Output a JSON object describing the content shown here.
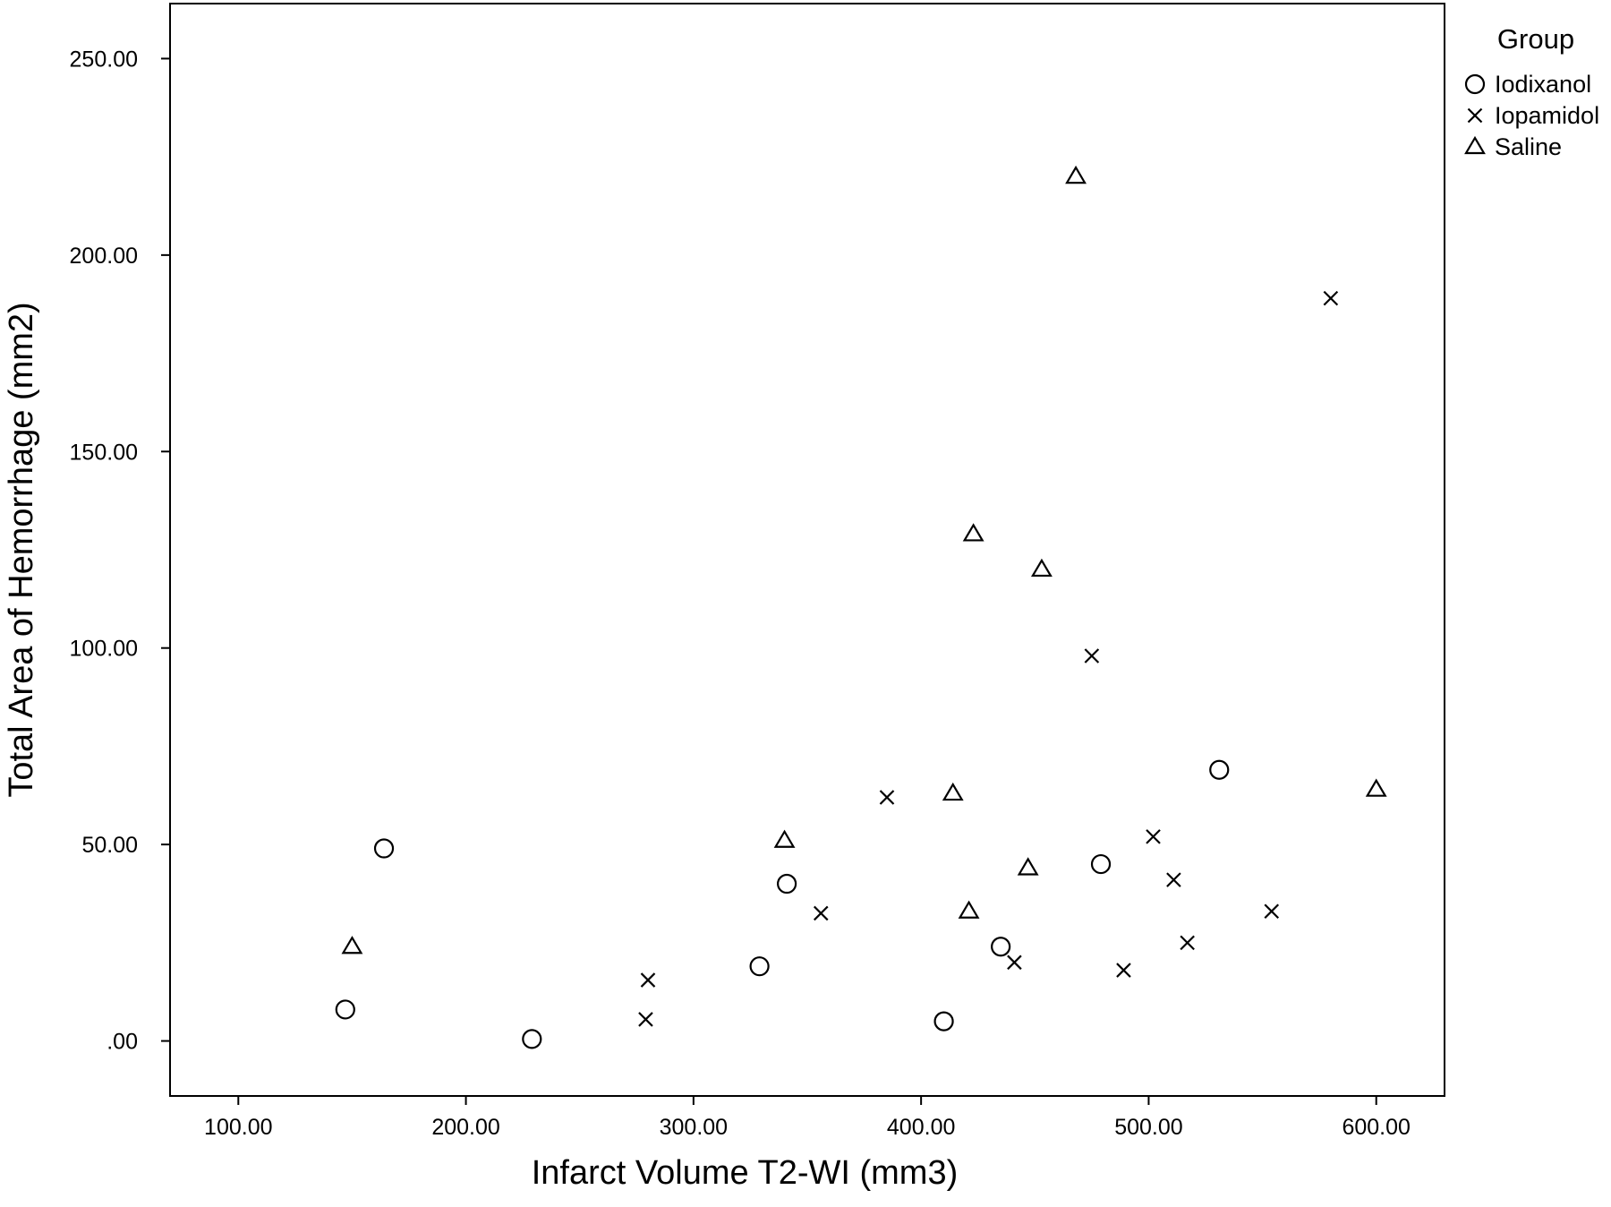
{
  "chart_data": {
    "type": "scatter",
    "title": "",
    "xlabel": "Infarct Volume T2-WI (mm3)",
    "ylabel": "Total Area of Hemorrhage (mm2)",
    "xlim": [
      70,
      630
    ],
    "ylim": [
      -14,
      264
    ],
    "x_ticks": [
      100,
      200,
      300,
      400,
      500,
      600
    ],
    "x_tick_labels": [
      "100.00",
      "200.00",
      "300.00",
      "400.00",
      "500.00",
      "600.00"
    ],
    "y_ticks": [
      0,
      50,
      100,
      150,
      200,
      250
    ],
    "y_tick_labels": [
      ".00",
      "50.00",
      "100.00",
      "150.00",
      "200.00",
      "250.00"
    ],
    "grid": false,
    "legend": {
      "title": "Group",
      "position": "right"
    },
    "series": [
      {
        "name": "Iodixanol",
        "marker": "circle",
        "points": [
          [
            147,
            8
          ],
          [
            164,
            49
          ],
          [
            229,
            0.5
          ],
          [
            329,
            19
          ],
          [
            341,
            40
          ],
          [
            410,
            5
          ],
          [
            435,
            24
          ],
          [
            479,
            45
          ],
          [
            531,
            69
          ]
        ]
      },
      {
        "name": "Iopamidol",
        "marker": "x",
        "points": [
          [
            280,
            15.5
          ],
          [
            279,
            5.5
          ],
          [
            356,
            32.5
          ],
          [
            385,
            62
          ],
          [
            441,
            20
          ],
          [
            475,
            98
          ],
          [
            489,
            18
          ],
          [
            502,
            52
          ],
          [
            511,
            41
          ],
          [
            517,
            25
          ],
          [
            554,
            33
          ],
          [
            580,
            189
          ]
        ]
      },
      {
        "name": "Saline",
        "marker": "triangle",
        "points": [
          [
            150,
            24
          ],
          [
            340,
            51
          ],
          [
            414,
            63
          ],
          [
            421,
            33
          ],
          [
            423,
            129
          ],
          [
            447,
            44
          ],
          [
            453,
            120
          ],
          [
            468,
            220
          ],
          [
            600,
            64
          ]
        ]
      }
    ]
  }
}
